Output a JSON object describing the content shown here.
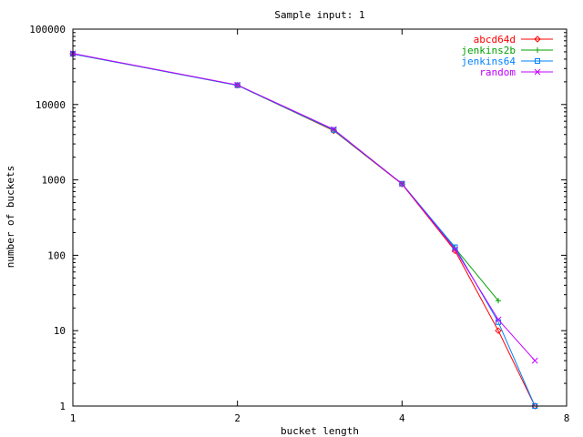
{
  "chart_data": {
    "type": "line",
    "title": "Sample input: 1",
    "xlabel": "bucket length",
    "ylabel": "number of buckets",
    "x_scale": "log2",
    "y_scale": "log10",
    "xlim": [
      1,
      8
    ],
    "ylim": [
      1,
      100000
    ],
    "x_ticks": [
      {
        "value": 1,
        "label": "1"
      },
      {
        "value": 2,
        "label": "2"
      },
      {
        "value": 4,
        "label": "4"
      },
      {
        "value": 8,
        "label": "8"
      }
    ],
    "y_ticks": [
      {
        "value": 1,
        "label": "1"
      },
      {
        "value": 10,
        "label": "10"
      },
      {
        "value": 100,
        "label": "100"
      },
      {
        "value": 1000,
        "label": "1000"
      },
      {
        "value": 10000,
        "label": "10000"
      },
      {
        "value": 100000,
        "label": "100000"
      }
    ],
    "grid": false,
    "legend_position": "top-right",
    "series": [
      {
        "name": "abcd64d",
        "color": "#ff0000",
        "marker": "diamond",
        "x": [
          1,
          2,
          3,
          4,
          5,
          6,
          7
        ],
        "y": [
          47000,
          18000,
          4500,
          880,
          115,
          10,
          1
        ]
      },
      {
        "name": "jenkins2b",
        "color": "#00a000",
        "marker": "plus",
        "x": [
          1,
          2,
          3,
          4,
          5,
          6
        ],
        "y": [
          47000,
          18000,
          4550,
          890,
          125,
          25
        ]
      },
      {
        "name": "jenkins64",
        "color": "#0080ff",
        "marker": "square",
        "x": [
          1,
          2,
          3,
          4,
          5,
          6,
          7
        ],
        "y": [
          47000,
          18000,
          4600,
          890,
          128,
          13,
          1
        ]
      },
      {
        "name": "random",
        "color": "#c000ff",
        "marker": "x",
        "x": [
          1,
          2,
          3,
          4,
          5,
          6,
          7
        ],
        "y": [
          47500,
          18200,
          4700,
          890,
          120,
          14,
          4
        ]
      }
    ]
  }
}
